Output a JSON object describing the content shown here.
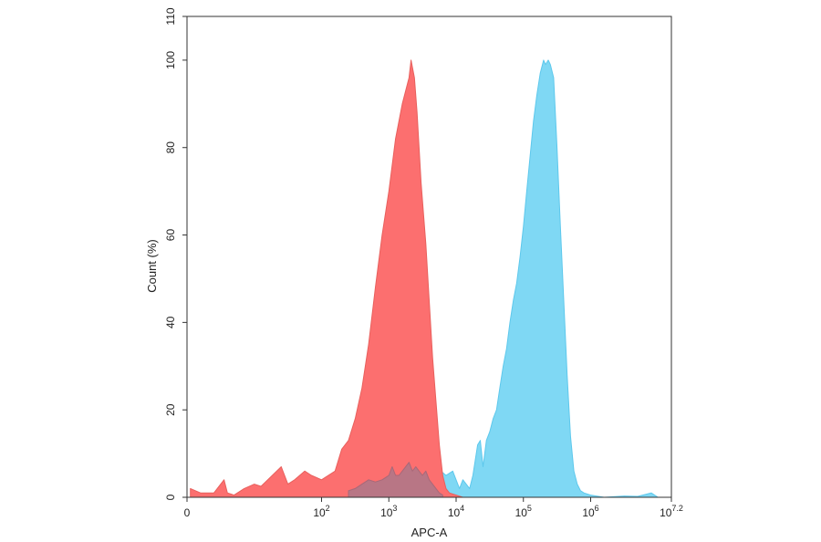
{
  "chart_data": {
    "type": "area",
    "title": "",
    "xlabel": "APC-A",
    "ylabel": "Count (%)",
    "x_scale": "log10",
    "xlim": [
      0,
      7.2
    ],
    "ylim": [
      0,
      110
    ],
    "x_ticks": [
      {
        "value": 0,
        "label": "0",
        "exp": ""
      },
      {
        "value": 2,
        "label": "10",
        "exp": "2"
      },
      {
        "value": 3,
        "label": "10",
        "exp": "3"
      },
      {
        "value": 4,
        "label": "10",
        "exp": "4"
      },
      {
        "value": 5,
        "label": "10",
        "exp": "5"
      },
      {
        "value": 6,
        "label": "10",
        "exp": "6"
      },
      {
        "value": 7.2,
        "label": "10",
        "exp": "7.2"
      }
    ],
    "y_ticks": [
      0,
      20,
      40,
      60,
      80,
      100,
      110
    ],
    "grid": false,
    "series": [
      {
        "color": "#7fd8f4",
        "stroke": "#5ec8ec",
        "points": [
          [
            2.6,
            0
          ],
          [
            2.8,
            1
          ],
          [
            3.0,
            2
          ],
          [
            3.2,
            3
          ],
          [
            3.4,
            3
          ],
          [
            3.55,
            5
          ],
          [
            3.7,
            7
          ],
          [
            3.85,
            5
          ],
          [
            3.95,
            6
          ],
          [
            4.05,
            2
          ],
          [
            4.1,
            4
          ],
          [
            4.2,
            2
          ],
          [
            4.25,
            5
          ],
          [
            4.32,
            12
          ],
          [
            4.36,
            13
          ],
          [
            4.4,
            7
          ],
          [
            4.45,
            13
          ],
          [
            4.5,
            15
          ],
          [
            4.55,
            18
          ],
          [
            4.6,
            20
          ],
          [
            4.65,
            25
          ],
          [
            4.7,
            30
          ],
          [
            4.75,
            34
          ],
          [
            4.8,
            40
          ],
          [
            4.85,
            45
          ],
          [
            4.9,
            49
          ],
          [
            4.95,
            55
          ],
          [
            5.0,
            62
          ],
          [
            5.05,
            70
          ],
          [
            5.1,
            78
          ],
          [
            5.15,
            86
          ],
          [
            5.2,
            92
          ],
          [
            5.25,
            97
          ],
          [
            5.3,
            100
          ],
          [
            5.33,
            99
          ],
          [
            5.37,
            100
          ],
          [
            5.4,
            99
          ],
          [
            5.45,
            96
          ],
          [
            5.5,
            80
          ],
          [
            5.55,
            62
          ],
          [
            5.6,
            45
          ],
          [
            5.65,
            28
          ],
          [
            5.7,
            14
          ],
          [
            5.75,
            6
          ],
          [
            5.8,
            3
          ],
          [
            5.85,
            1.5
          ],
          [
            5.9,
            1
          ],
          [
            6.0,
            0.5
          ],
          [
            6.2,
            0
          ],
          [
            6.5,
            0.3
          ],
          [
            6.7,
            0.2
          ],
          [
            6.9,
            1
          ],
          [
            7.0,
            0
          ]
        ]
      },
      {
        "color": "#fc6f6f",
        "stroke": "#e8605d",
        "points": [
          [
            0.05,
            2
          ],
          [
            0.2,
            1
          ],
          [
            0.4,
            1
          ],
          [
            0.55,
            4
          ],
          [
            0.6,
            1
          ],
          [
            0.7,
            0.5
          ],
          [
            0.85,
            2
          ],
          [
            1.0,
            3
          ],
          [
            1.1,
            2.5
          ],
          [
            1.2,
            4
          ],
          [
            1.4,
            7
          ],
          [
            1.5,
            3
          ],
          [
            1.6,
            4
          ],
          [
            1.75,
            6
          ],
          [
            1.85,
            5
          ],
          [
            2.0,
            4
          ],
          [
            2.1,
            5
          ],
          [
            2.2,
            6
          ],
          [
            2.3,
            11
          ],
          [
            2.4,
            13
          ],
          [
            2.5,
            18
          ],
          [
            2.6,
            25
          ],
          [
            2.7,
            35
          ],
          [
            2.8,
            48
          ],
          [
            2.9,
            60
          ],
          [
            3.0,
            70
          ],
          [
            3.1,
            82
          ],
          [
            3.2,
            90
          ],
          [
            3.3,
            96
          ],
          [
            3.33,
            100
          ],
          [
            3.38,
            96
          ],
          [
            3.42,
            88
          ],
          [
            3.48,
            72
          ],
          [
            3.55,
            58
          ],
          [
            3.6,
            45
          ],
          [
            3.65,
            32
          ],
          [
            3.7,
            22
          ],
          [
            3.75,
            12
          ],
          [
            3.8,
            5
          ],
          [
            3.85,
            2
          ],
          [
            3.9,
            1
          ],
          [
            4.0,
            0.5
          ],
          [
            4.1,
            0
          ]
        ]
      },
      {
        "color": "#b87685",
        "stroke": "#a86878",
        "points": [
          [
            2.4,
            1.5
          ],
          [
            2.5,
            2
          ],
          [
            2.6,
            3
          ],
          [
            2.7,
            4
          ],
          [
            2.8,
            3.5
          ],
          [
            2.9,
            4
          ],
          [
            3.0,
            5
          ],
          [
            3.05,
            7
          ],
          [
            3.1,
            5
          ],
          [
            3.15,
            5
          ],
          [
            3.2,
            6
          ],
          [
            3.3,
            8
          ],
          [
            3.35,
            6
          ],
          [
            3.4,
            7
          ],
          [
            3.45,
            6
          ],
          [
            3.5,
            5
          ],
          [
            3.55,
            6
          ],
          [
            3.6,
            4
          ],
          [
            3.65,
            3
          ],
          [
            3.7,
            2
          ],
          [
            3.75,
            1
          ],
          [
            3.8,
            0.5
          ]
        ]
      }
    ]
  }
}
